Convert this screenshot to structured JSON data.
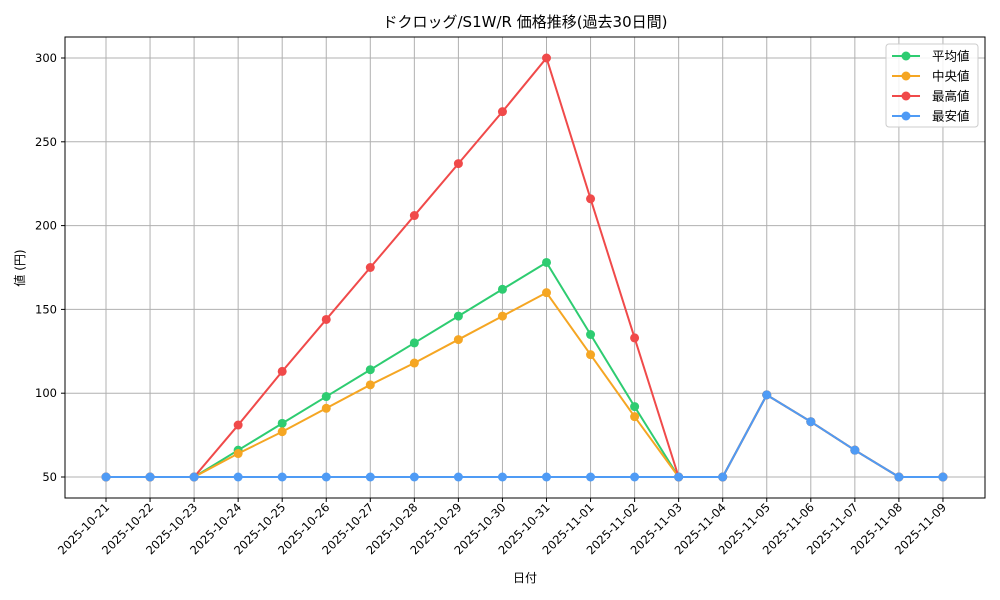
{
  "chart_data": {
    "type": "line",
    "title": "ドクロッグ/S1W/R 価格推移(過去30日間)",
    "xlabel": "日付",
    "ylabel": "値 (円)",
    "ylim": [
      37,
      313
    ],
    "yticks": [
      50,
      100,
      150,
      200,
      250,
      300
    ],
    "grid": true,
    "legend_position": "upper right",
    "categories": [
      "2025-10-21",
      "2025-10-22",
      "2025-10-23",
      "2025-10-24",
      "2025-10-25",
      "2025-10-26",
      "2025-10-27",
      "2025-10-28",
      "2025-10-29",
      "2025-10-30",
      "2025-10-31",
      "2025-11-01",
      "2025-11-02",
      "2025-11-03",
      "2025-11-04",
      "2025-11-05",
      "2025-11-06",
      "2025-11-07",
      "2025-11-08",
      "2025-11-09"
    ],
    "series": [
      {
        "name": "平均値",
        "color": "#2ecc71",
        "values": [
          50,
          50,
          50,
          66,
          82,
          98,
          114,
          130,
          146,
          162,
          178,
          135,
          92,
          50,
          50,
          99,
          83,
          66,
          50,
          50
        ]
      },
      {
        "name": "中央値",
        "color": "#f5a623",
        "values": [
          50,
          50,
          50,
          64,
          77,
          91,
          105,
          118,
          132,
          146,
          160,
          123,
          86,
          50,
          50,
          99,
          83,
          66,
          50,
          50
        ]
      },
      {
        "name": "最高値",
        "color": "#f04a4a",
        "values": [
          50,
          50,
          50,
          81,
          113,
          144,
          175,
          206,
          237,
          268,
          300,
          216,
          133,
          50,
          50,
          99,
          83,
          66,
          50,
          50
        ]
      },
      {
        "name": "最安値",
        "color": "#4f9bf5",
        "values": [
          50,
          50,
          50,
          50,
          50,
          50,
          50,
          50,
          50,
          50,
          50,
          50,
          50,
          50,
          50,
          99,
          83,
          66,
          50,
          50
        ]
      }
    ]
  },
  "colors": {
    "grid": "#b0b0b0",
    "axis": "#000000",
    "legend_border": "#cccccc"
  }
}
